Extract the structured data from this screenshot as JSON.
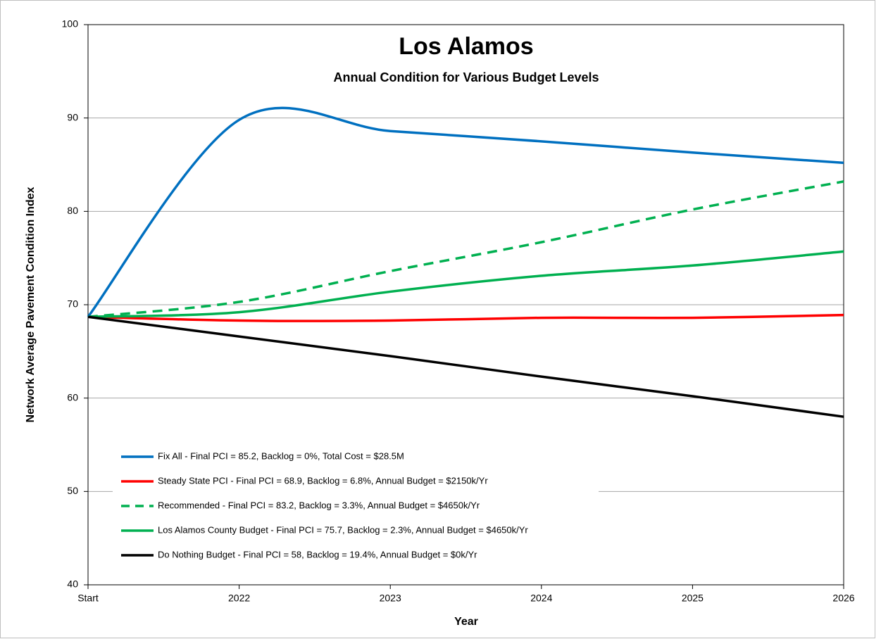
{
  "chart_data": {
    "type": "line",
    "title": "Los Alamos",
    "subtitle": "Annual Condition for Various Budget Levels",
    "x_label": "Year",
    "y_label": "Network Average Pavement Condition Index",
    "categories": [
      "Start",
      "2022",
      "2023",
      "2024",
      "2025",
      "2026"
    ],
    "ylim": [
      40,
      100
    ],
    "yticks": [
      40,
      50,
      60,
      70,
      80,
      90,
      100
    ],
    "grid": true,
    "smooth": true,
    "legend": "lower left",
    "series": [
      {
        "name": "Fix All - Final PCI = 85.2, Backlog = 0%, Total Cost  = $28.5M",
        "color": "#0070c0",
        "dashed": false,
        "values": [
          68.7,
          89.8,
          88.6,
          87.5,
          86.3,
          85.2
        ]
      },
      {
        "name": "Steady State PCI - Final PCI = 68.9, Backlog = 6.8%, Annual Budget = $2150k/Yr",
        "color": "#ff0000",
        "dashed": false,
        "values": [
          68.7,
          68.3,
          68.3,
          68.6,
          68.6,
          68.9
        ]
      },
      {
        "name": "Recommended - Final PCI = 83.2, Backlog = 3.3%, Annual Budget = $4650k/Yr",
        "color": "#00b050",
        "dashed": true,
        "values": [
          68.7,
          70.3,
          73.6,
          76.7,
          80.2,
          83.2
        ]
      },
      {
        "name": "Los Alamos County Budget - Final PCI = 75.7, Backlog = 2.3%, Annual Budget = $4650k/Yr",
        "color": "#00b050",
        "dashed": false,
        "values": [
          68.7,
          69.2,
          71.4,
          73.1,
          74.2,
          75.7
        ]
      },
      {
        "name": "Do Nothing Budget - Final PCI = 58, Backlog = 19.4%, Annual Budget = $0k/Yr",
        "color": "#000000",
        "dashed": false,
        "values": [
          68.7,
          66.6,
          64.5,
          62.3,
          60.2,
          58.0
        ]
      }
    ]
  }
}
